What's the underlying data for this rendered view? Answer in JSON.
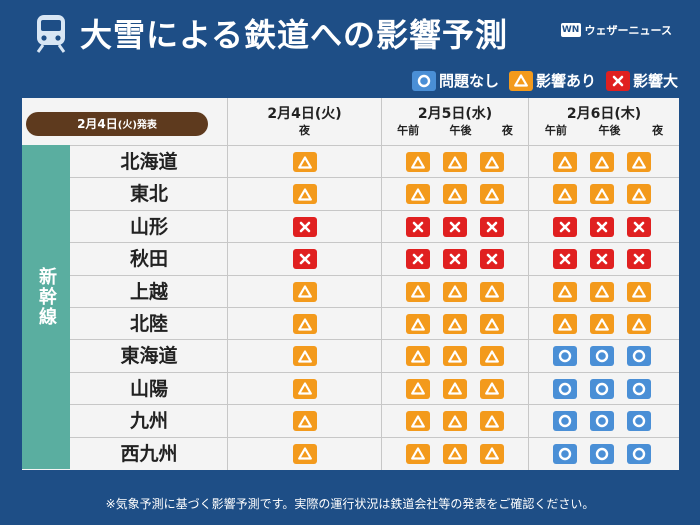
{
  "header": {
    "title": "大雪による鉄道への影響予測",
    "brand": "ウェザーニュース",
    "brand_logo": "WN"
  },
  "legend": [
    {
      "status": "none",
      "label": "問題なし"
    },
    {
      "status": "some",
      "label": "影響あり"
    },
    {
      "status": "big",
      "label": "影響大"
    }
  ],
  "badge": {
    "month_day": "2月4日",
    "weekday": "(火)",
    "suffix": "発表"
  },
  "columns": [
    {
      "date": "2月4日(火)",
      "periods": [
        "夜"
      ]
    },
    {
      "date": "2月5日(水)",
      "periods": [
        "午前",
        "午後",
        "夜"
      ]
    },
    {
      "date": "2月6日(木)",
      "periods": [
        "午前",
        "午後",
        "夜"
      ]
    }
  ],
  "side_label": "新幹線",
  "rows": [
    {
      "name": "北海道",
      "values": [
        "some",
        "some",
        "some",
        "some",
        "some",
        "some",
        "some"
      ]
    },
    {
      "name": "東北",
      "values": [
        "some",
        "some",
        "some",
        "some",
        "some",
        "some",
        "some"
      ]
    },
    {
      "name": "山形",
      "values": [
        "big",
        "big",
        "big",
        "big",
        "big",
        "big",
        "big"
      ]
    },
    {
      "name": "秋田",
      "values": [
        "big",
        "big",
        "big",
        "big",
        "big",
        "big",
        "big"
      ]
    },
    {
      "name": "上越",
      "values": [
        "some",
        "some",
        "some",
        "some",
        "some",
        "some",
        "some"
      ]
    },
    {
      "name": "北陸",
      "values": [
        "some",
        "some",
        "some",
        "some",
        "some",
        "some",
        "some"
      ]
    },
    {
      "name": "東海道",
      "values": [
        "some",
        "some",
        "some",
        "some",
        "none",
        "none",
        "none"
      ]
    },
    {
      "name": "山陽",
      "values": [
        "some",
        "some",
        "some",
        "some",
        "none",
        "none",
        "none"
      ]
    },
    {
      "name": "九州",
      "values": [
        "some",
        "some",
        "some",
        "some",
        "none",
        "none",
        "none"
      ]
    },
    {
      "name": "西九州",
      "values": [
        "some",
        "some",
        "some",
        "some",
        "none",
        "none",
        "none"
      ]
    }
  ],
  "footnote": "※気象予測に基づく影響予測です。実際の運行状況は鉄道会社等の発表をご確認ください。",
  "colors": {
    "none": "#4a8fd6",
    "some": "#f39a1c",
    "big": "#e02020",
    "background": "#1e4e86",
    "side": "#5aaea0"
  },
  "icons": {
    "none": "circle-icon",
    "some": "triangle-icon",
    "big": "cross-icon",
    "header": "train-icon"
  }
}
